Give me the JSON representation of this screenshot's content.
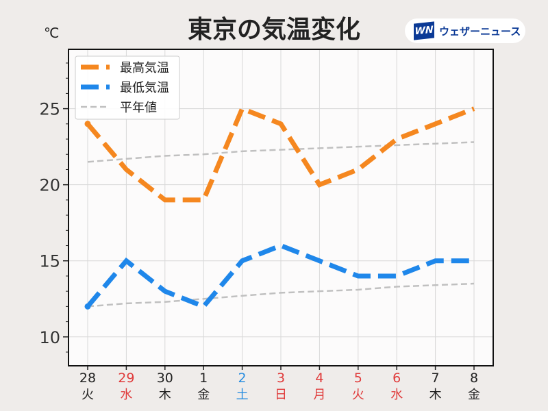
{
  "title": "東京の気温変化",
  "unit": "℃",
  "brand": {
    "mark": "WN",
    "name": "ウェザーニュース"
  },
  "chart_data": {
    "type": "line",
    "title": "東京の気温変化",
    "ylabel": "℃",
    "ylim": [
      8.1,
      28.9
    ],
    "yticks": [
      10,
      15,
      20,
      25
    ],
    "grid": true,
    "legend_position": "top-left",
    "x": [
      {
        "day": "28",
        "weekday": "火",
        "color": "#222222"
      },
      {
        "day": "29",
        "weekday": "水",
        "color": "#e03a3a"
      },
      {
        "day": "30",
        "weekday": "木",
        "color": "#222222"
      },
      {
        "day": "1",
        "weekday": "金",
        "color": "#222222"
      },
      {
        "day": "2",
        "weekday": "土",
        "color": "#2a8ee0"
      },
      {
        "day": "3",
        "weekday": "日",
        "color": "#e03a3a"
      },
      {
        "day": "4",
        "weekday": "月",
        "color": "#e03a3a"
      },
      {
        "day": "5",
        "weekday": "火",
        "color": "#e03a3a"
      },
      {
        "day": "6",
        "weekday": "水",
        "color": "#e03a3a"
      },
      {
        "day": "7",
        "weekday": "木",
        "color": "#222222"
      },
      {
        "day": "8",
        "weekday": "金",
        "color": "#222222"
      }
    ],
    "series": [
      {
        "name": "最高気温",
        "color": "#f5871f",
        "values": [
          24,
          21,
          19,
          19,
          25,
          24,
          20,
          21,
          23,
          24,
          25
        ]
      },
      {
        "name": "最低気温",
        "color": "#1f87ea",
        "values": [
          12,
          15,
          13,
          12,
          15,
          16,
          15,
          14,
          14,
          15,
          15
        ]
      },
      {
        "name": "平年値",
        "color": "#c0c0c0",
        "values": [
          21.5,
          21.7,
          21.9,
          22.0,
          22.2,
          22.3,
          22.4,
          22.5,
          22.6,
          22.7,
          22.8
        ],
        "legend": true
      },
      {
        "name": "平年値",
        "color": "#c0c0c0",
        "values": [
          12.0,
          12.2,
          12.3,
          12.5,
          12.7,
          12.9,
          13.0,
          13.1,
          13.3,
          13.4,
          13.5
        ],
        "legend": false
      }
    ]
  }
}
